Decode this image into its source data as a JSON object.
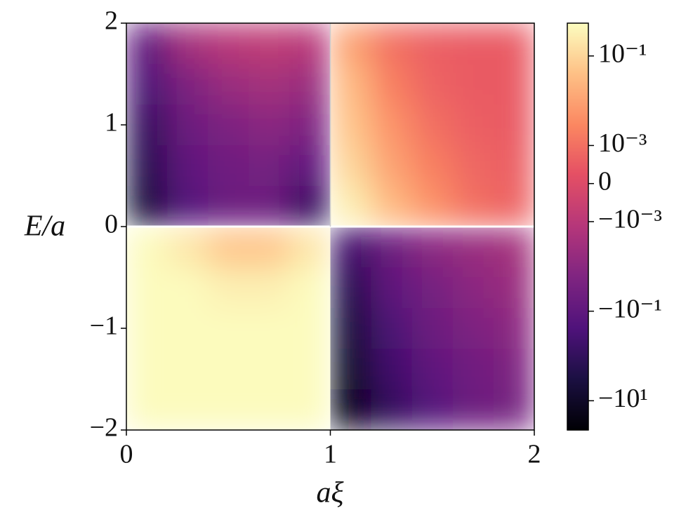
{
  "chart_data": {
    "type": "heatmap",
    "xlabel": "aξ",
    "ylabel": "E/a",
    "xlim": [
      0,
      2
    ],
    "ylim": [
      -2,
      2
    ],
    "xticks": [
      0,
      1,
      2
    ],
    "yticks": [
      {
        "value": -2,
        "label": "−2"
      },
      {
        "value": -1,
        "label": "−1"
      },
      0,
      1,
      2
    ],
    "x": [
      0.1,
      0.3,
      0.5,
      0.7,
      0.9,
      1.1,
      1.3,
      1.5,
      1.7,
      1.9
    ],
    "y": [
      1.8,
      1.4,
      1.0,
      0.6,
      0.2,
      -0.2,
      -0.6,
      -1.0,
      -1.4,
      -1.8
    ],
    "z": [
      [
        -0.1,
        -0.003,
        -0.001,
        -0.0008,
        -0.001,
        0.01,
        0.001,
        0.0006,
        0.0005,
        0.0005
      ],
      [
        -0.3,
        -0.02,
        -0.005,
        -0.003,
        -0.005,
        0.03,
        0.002,
        0.0007,
        0.0005,
        0.0005
      ],
      [
        -1,
        -0.05,
        -0.02,
        -0.01,
        -0.02,
        0.05,
        0.005,
        0.001,
        0.0006,
        0.0005
      ],
      [
        -2,
        -0.1,
        -0.04,
        -0.03,
        -0.1,
        0.1,
        0.01,
        0.002,
        0.0008,
        0.0006
      ],
      [
        -5,
        -0.2,
        -0.05,
        -0.05,
        -1,
        0.3,
        0.03,
        0.005,
        0.001,
        0.0007
      ],
      [
        0.5,
        0.2,
        0.05,
        0.05,
        0.2,
        -0.5,
        -0.05,
        -0.01,
        -0.005,
        -0.003
      ],
      [
        0.5,
        0.5,
        0.3,
        0.3,
        0.5,
        -2,
        -0.1,
        -0.03,
        -0.01,
        -0.005
      ],
      [
        0.5,
        0.5,
        0.5,
        0.5,
        0.5,
        -5,
        -0.3,
        -0.05,
        -0.02,
        -0.01
      ],
      [
        0.5,
        0.5,
        0.5,
        0.5,
        0.5,
        -10,
        -0.5,
        -0.1,
        -0.04,
        -0.02
      ],
      [
        0.5,
        0.5,
        0.5,
        0.5,
        0.5,
        -30,
        -1,
        -0.2,
        -0.05,
        -0.03
      ]
    ],
    "colormap": "magma",
    "color_scale": "symlog",
    "linthresh": 0.001,
    "clim": [
      -45,
      0.54
    ],
    "cticks": [
      {
        "value": 0.1,
        "label": "10⁻¹"
      },
      {
        "value": 0.001,
        "label": "10⁻³"
      },
      0,
      {
        "value": -0.001,
        "label": "−10⁻³"
      },
      {
        "value": -0.1,
        "label": "−10⁻¹"
      },
      {
        "value": -10,
        "label": "−10¹"
      }
    ]
  }
}
